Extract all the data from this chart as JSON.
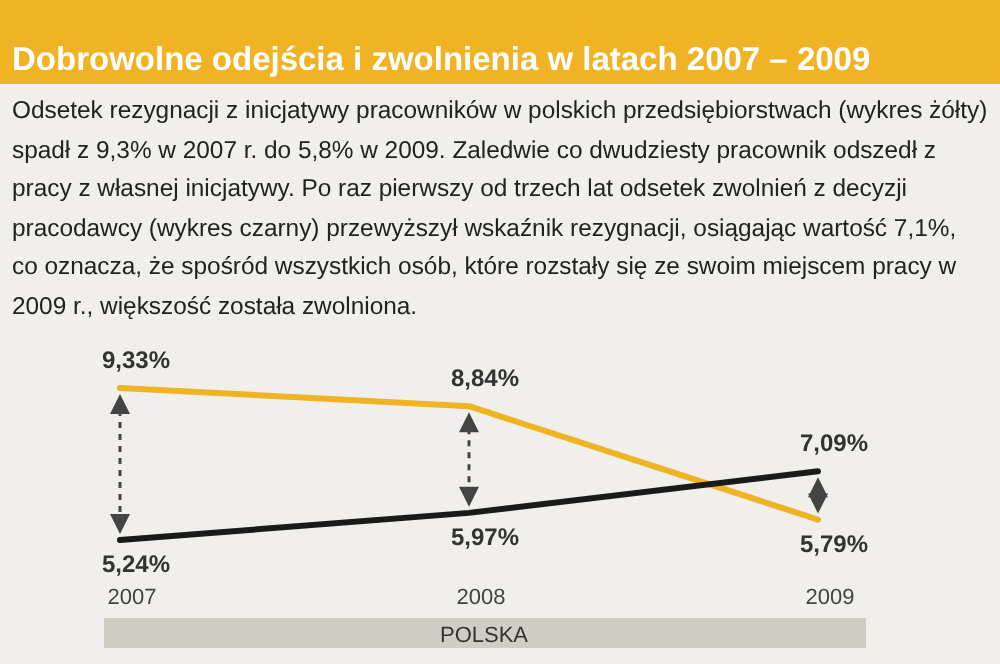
{
  "chart_data": {
    "type": "line",
    "title": "Dobrowolne odejścia i zwolnienia w latach 2007 – 2009",
    "subtitle": "Odsetek rezygnacji z inicjatywy pracowników w polskich przedsiębiorstwach (wykres żółty) spadł z 9,3% w 2007 r. do 5,8% w 2009. Zaledwie co dwudziesty pracownik odszedł z pracy z własnej inicjatywy. Po raz pierwszy od trzech lat odsetek zwolnień z decyzji pracodawcy (wykres czarny) przewyższył wskaźnik rezygnacji, osiągając wartość 7,1%, co oznacza, że spośród wszystkich osób, które rozstały się ze swoim miejscem pracy w 2009 r., większość została zwolniona.",
    "categories": [
      "2007",
      "2008",
      "2009"
    ],
    "series": [
      {
        "color": "#f0b323",
        "values": [
          9.33,
          8.84,
          5.79
        ],
        "value_labels": [
          "9,33%",
          "8,84%",
          "5,79%"
        ]
      },
      {
        "color": "#1a1a1a",
        "values": [
          5.24,
          5.97,
          7.09
        ],
        "value_labels": [
          "5,24%",
          "5,97%",
          "7,09%"
        ]
      }
    ],
    "tick_labels": "x",
    "annotations": [
      "POLSKA"
    ]
  }
}
